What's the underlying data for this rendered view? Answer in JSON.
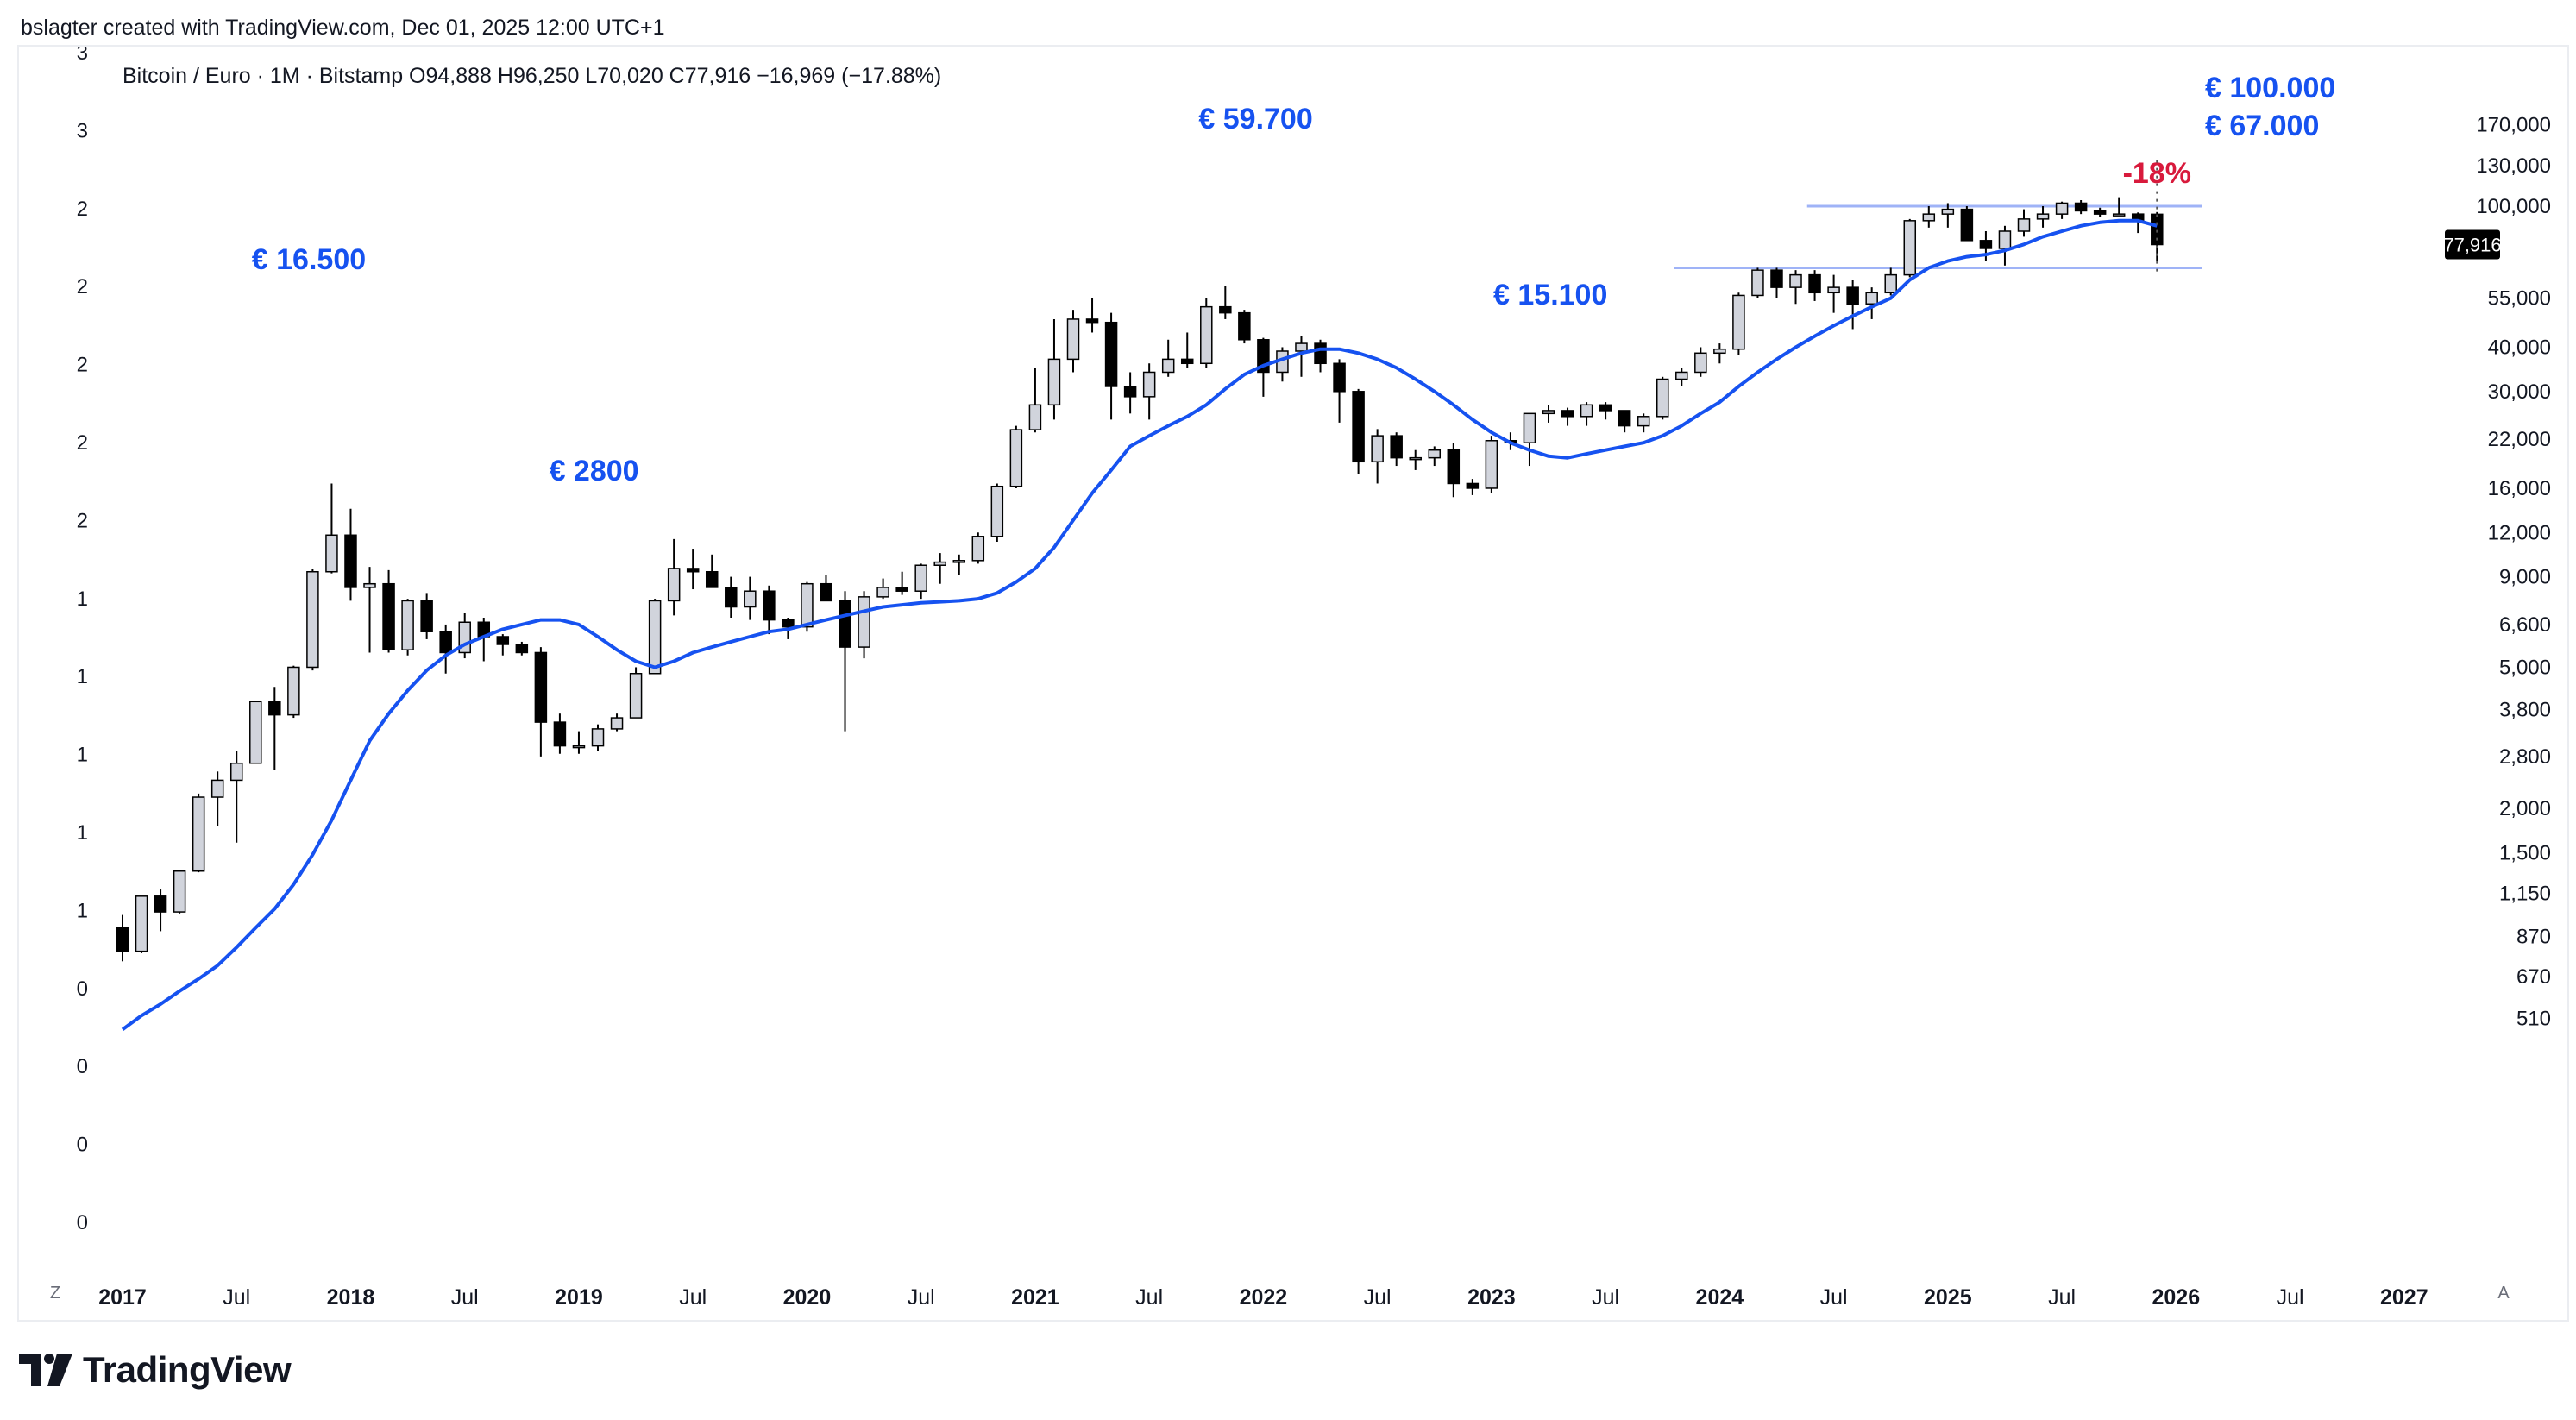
{
  "caption": "bslagter created with TradingView.com, Dec 01, 2025 12:00 UTC+1",
  "legend": "Bitcoin / Euro · 1M · Bitstamp  O94,888  H96,250  L70,020  C77,916  −16,969 (−17.88%)",
  "brand": "TradingView",
  "corner_left": "Z",
  "corner_right": "A",
  "last_price_label": "77,916",
  "colors": {
    "up_fill": "#d1d4dc",
    "down_fill": "#000000",
    "wick": "#000000",
    "ma_line": "#1652f0",
    "annotation_blue": "#1652f0",
    "annotation_red": "#d81a3c",
    "level_line": "#9fb3f7",
    "grid": "none"
  },
  "chart_data": {
    "type": "candlestick",
    "title": "Bitcoin / Euro · 1M · Bitstamp",
    "scale": "log",
    "ylim": [
      420,
      180000
    ],
    "y_ticks_right": [
      "170,000",
      "130,000",
      "100,000",
      "77,916",
      "55,000",
      "40,000",
      "30,000",
      "22,000",
      "16,000",
      "12,000",
      "9,000",
      "6,600",
      "5,000",
      "3,800",
      "2,800",
      "2,000",
      "1,500",
      "1,150",
      "870",
      "670",
      "510"
    ],
    "y_ticks_left": [
      "3",
      "3",
      "2",
      "2",
      "2",
      "2",
      "2",
      "1",
      "1",
      "1",
      "1",
      "1",
      "0",
      "0",
      "0",
      "0"
    ],
    "x_ticks": [
      {
        "label": "2017",
        "bold": true
      },
      {
        "label": "Jul",
        "bold": false
      },
      {
        "label": "2018",
        "bold": true
      },
      {
        "label": "Jul",
        "bold": false
      },
      {
        "label": "2019",
        "bold": true
      },
      {
        "label": "Jul",
        "bold": false
      },
      {
        "label": "2020",
        "bold": true
      },
      {
        "label": "Jul",
        "bold": false
      },
      {
        "label": "2021",
        "bold": true
      },
      {
        "label": "Jul",
        "bold": false
      },
      {
        "label": "2022",
        "bold": true
      },
      {
        "label": "Jul",
        "bold": false
      },
      {
        "label": "2023",
        "bold": true
      },
      {
        "label": "Jul",
        "bold": false
      },
      {
        "label": "2024",
        "bold": true
      },
      {
        "label": "Jul",
        "bold": false
      },
      {
        "label": "2025",
        "bold": true
      },
      {
        "label": "Jul",
        "bold": false
      },
      {
        "label": "2026",
        "bold": true
      },
      {
        "label": "Jul",
        "bold": false
      },
      {
        "label": "2027",
        "bold": true
      }
    ],
    "x_start": "2017-01",
    "candles": [
      [
        920,
        1000,
        740,
        790
      ],
      [
        790,
        1130,
        780,
        1130
      ],
      [
        1130,
        1180,
        900,
        1020
      ],
      [
        1020,
        1340,
        1010,
        1330
      ],
      [
        1330,
        2200,
        1320,
        2150
      ],
      [
        2150,
        2540,
        1780,
        2400
      ],
      [
        2400,
        2900,
        1600,
        2680
      ],
      [
        2680,
        4000,
        2680,
        4000
      ],
      [
        4000,
        4400,
        2560,
        3670
      ],
      [
        3670,
        5050,
        3600,
        5000
      ],
      [
        5000,
        9500,
        4900,
        9300
      ],
      [
        9300,
        16500,
        9200,
        11800
      ],
      [
        11800,
        14000,
        7700,
        8400
      ],
      [
        8400,
        9600,
        5500,
        8600
      ],
      [
        8600,
        9400,
        5500,
        5600
      ],
      [
        5600,
        7800,
        5400,
        7700
      ],
      [
        7700,
        8100,
        6000,
        6300
      ],
      [
        6300,
        6600,
        4800,
        5500
      ],
      [
        5500,
        7100,
        5300,
        6700
      ],
      [
        6700,
        6900,
        5200,
        6100
      ],
      [
        6100,
        6200,
        5400,
        5800
      ],
      [
        5800,
        5900,
        5400,
        5500
      ],
      [
        5500,
        5700,
        2800,
        3500
      ],
      [
        3500,
        3700,
        2850,
        3000
      ],
      [
        3000,
        3300,
        2850,
        3000
      ],
      [
        3000,
        3450,
        2900,
        3350
      ],
      [
        3350,
        3700,
        3300,
        3600
      ],
      [
        3600,
        5000,
        3600,
        4800
      ],
      [
        4800,
        7800,
        4800,
        7700
      ],
      [
        7700,
        11500,
        7000,
        9500
      ],
      [
        9500,
        10800,
        8300,
        9300
      ],
      [
        9300,
        10400,
        8600,
        8400
      ],
      [
        8400,
        9000,
        6900,
        7400
      ],
      [
        7400,
        9000,
        6800,
        8200
      ],
      [
        8200,
        8500,
        6200,
        6800
      ],
      [
        6800,
        6900,
        6000,
        6500
      ],
      [
        6500,
        8700,
        6300,
        8600
      ],
      [
        8600,
        9100,
        7700,
        7700
      ],
      [
        7700,
        8200,
        3300,
        5700
      ],
      [
        5700,
        8200,
        5300,
        7900
      ],
      [
        7900,
        8900,
        7800,
        8400
      ],
      [
        8400,
        9300,
        8000,
        8200
      ],
      [
        8200,
        9800,
        7800,
        9700
      ],
      [
        9700,
        10500,
        8600,
        9900
      ],
      [
        9900,
        10400,
        9100,
        10000
      ],
      [
        10000,
        12000,
        9800,
        11700
      ],
      [
        11700,
        16500,
        11300,
        16200
      ],
      [
        16200,
        24000,
        16000,
        23400
      ],
      [
        23400,
        35000,
        23000,
        27500
      ],
      [
        27500,
        48000,
        25000,
        37000
      ],
      [
        37000,
        51000,
        34000,
        48000
      ],
      [
        48000,
        55000,
        44000,
        47000
      ],
      [
        47000,
        50000,
        25000,
        31000
      ],
      [
        31000,
        34000,
        26000,
        29000
      ],
      [
        29000,
        36000,
        25000,
        34000
      ],
      [
        34000,
        42000,
        33000,
        37000
      ],
      [
        37000,
        44000,
        35000,
        36000
      ],
      [
        36000,
        55000,
        35000,
        52000
      ],
      [
        52000,
        59700,
        48000,
        50000
      ],
      [
        50000,
        51000,
        41000,
        42000
      ],
      [
        42000,
        42500,
        29000,
        34000
      ],
      [
        34000,
        40000,
        32000,
        39000
      ],
      [
        39000,
        43000,
        33000,
        41000
      ],
      [
        41000,
        42000,
        34000,
        36000
      ],
      [
        36000,
        37000,
        24500,
        30000
      ],
      [
        30000,
        30500,
        17500,
        19000
      ],
      [
        19000,
        23500,
        16500,
        22500
      ],
      [
        22500,
        23000,
        18500,
        19500
      ],
      [
        19500,
        20500,
        18000,
        19500
      ],
      [
        19500,
        21000,
        18500,
        20500
      ],
      [
        20500,
        21500,
        15100,
        16500
      ],
      [
        16500,
        17000,
        15300,
        16000
      ],
      [
        16000,
        22500,
        15500,
        21800
      ],
      [
        21800,
        23000,
        20500,
        21500
      ],
      [
        21500,
        26000,
        18500,
        26000
      ],
      [
        26000,
        27500,
        24500,
        26500
      ],
      [
        26500,
        27000,
        24000,
        25500
      ],
      [
        25500,
        28000,
        24000,
        27500
      ],
      [
        27500,
        28000,
        25000,
        26500
      ],
      [
        26500,
        26500,
        23000,
        24000
      ],
      [
        24000,
        26000,
        23000,
        25500
      ],
      [
        25500,
        33000,
        25000,
        32500
      ],
      [
        32500,
        35000,
        31000,
        34000
      ],
      [
        34000,
        40000,
        33000,
        38500
      ],
      [
        38500,
        41000,
        36000,
        39500
      ],
      [
        39500,
        57000,
        38000,
        56000
      ],
      [
        56000,
        67000,
        55000,
        66000
      ],
      [
        66000,
        67000,
        55000,
        59000
      ],
      [
        59000,
        66000,
        53000,
        64000
      ],
      [
        64000,
        66000,
        54000,
        57000
      ],
      [
        57000,
        64000,
        50000,
        59000
      ],
      [
        59000,
        62000,
        45000,
        53000
      ],
      [
        53000,
        59000,
        48000,
        57000
      ],
      [
        57000,
        67000,
        56000,
        64000
      ],
      [
        64000,
        92000,
        63000,
        91000
      ],
      [
        91000,
        100000,
        87000,
        95000
      ],
      [
        95000,
        102000,
        87000,
        98000
      ],
      [
        98000,
        100000,
        80000,
        80000
      ],
      [
        80000,
        85000,
        70000,
        76000
      ],
      [
        76000,
        88000,
        68000,
        85000
      ],
      [
        85000,
        98000,
        82000,
        92000
      ],
      [
        92000,
        100000,
        87000,
        95000
      ],
      [
        95000,
        103000,
        92000,
        102000
      ],
      [
        102000,
        104000,
        95000,
        97000
      ],
      [
        97000,
        99000,
        93000,
        95000
      ],
      [
        95000,
        106000,
        94000,
        95000
      ],
      [
        95000,
        96000,
        84000,
        91000
      ],
      [
        94888,
        96250,
        70020,
        77916
      ]
    ],
    "moving_average": [
      [
        0,
        475
      ],
      [
        1,
        520
      ],
      [
        2,
        560
      ],
      [
        3,
        610
      ],
      [
        4,
        660
      ],
      [
        5,
        720
      ],
      [
        6,
        810
      ],
      [
        7,
        920
      ],
      [
        8,
        1040
      ],
      [
        9,
        1220
      ],
      [
        10,
        1480
      ],
      [
        11,
        1850
      ],
      [
        12,
        2400
      ],
      [
        13,
        3100
      ],
      [
        14,
        3700
      ],
      [
        15,
        4300
      ],
      [
        16,
        4900
      ],
      [
        17,
        5400
      ],
      [
        18,
        5800
      ],
      [
        19,
        6100
      ],
      [
        20,
        6400
      ],
      [
        21,
        6600
      ],
      [
        22,
        6800
      ],
      [
        23,
        6800
      ],
      [
        24,
        6600
      ],
      [
        25,
        6100
      ],
      [
        26,
        5600
      ],
      [
        27,
        5200
      ],
      [
        28,
        5000
      ],
      [
        29,
        5200
      ],
      [
        30,
        5500
      ],
      [
        31,
        5700
      ],
      [
        32,
        5900
      ],
      [
        33,
        6100
      ],
      [
        34,
        6300
      ],
      [
        35,
        6400
      ],
      [
        36,
        6600
      ],
      [
        37,
        6800
      ],
      [
        38,
        7000
      ],
      [
        39,
        7200
      ],
      [
        40,
        7400
      ],
      [
        41,
        7500
      ],
      [
        42,
        7600
      ],
      [
        43,
        7650
      ],
      [
        44,
        7700
      ],
      [
        45,
        7800
      ],
      [
        46,
        8100
      ],
      [
        47,
        8700
      ],
      [
        48,
        9500
      ],
      [
        49,
        10900
      ],
      [
        50,
        13000
      ],
      [
        51,
        15500
      ],
      [
        52,
        18000
      ],
      [
        53,
        21000
      ],
      [
        54,
        22500
      ],
      [
        55,
        24000
      ],
      [
        56,
        25500
      ],
      [
        57,
        27500
      ],
      [
        58,
        30500
      ],
      [
        59,
        33500
      ],
      [
        60,
        35500
      ],
      [
        61,
        37000
      ],
      [
        62,
        38500
      ],
      [
        63,
        39500
      ],
      [
        64,
        39500
      ],
      [
        65,
        38500
      ],
      [
        66,
        37000
      ],
      [
        67,
        35000
      ],
      [
        68,
        32500
      ],
      [
        69,
        30000
      ],
      [
        70,
        27500
      ],
      [
        71,
        25000
      ],
      [
        72,
        23000
      ],
      [
        73,
        21500
      ],
      [
        74,
        20500
      ],
      [
        75,
        19700
      ],
      [
        76,
        19500
      ],
      [
        77,
        20000
      ],
      [
        78,
        20500
      ],
      [
        79,
        21000
      ],
      [
        80,
        21500
      ],
      [
        81,
        22500
      ],
      [
        82,
        24000
      ],
      [
        83,
        26000
      ],
      [
        84,
        28000
      ],
      [
        85,
        31000
      ],
      [
        86,
        34000
      ],
      [
        87,
        37000
      ],
      [
        88,
        40000
      ],
      [
        89,
        43000
      ],
      [
        90,
        46000
      ],
      [
        91,
        49000
      ],
      [
        92,
        52000
      ],
      [
        93,
        55000
      ],
      [
        94,
        62000
      ],
      [
        95,
        67000
      ],
      [
        96,
        70000
      ],
      [
        97,
        72000
      ],
      [
        98,
        73000
      ],
      [
        99,
        75000
      ],
      [
        100,
        78000
      ],
      [
        101,
        82000
      ],
      [
        102,
        85000
      ],
      [
        103,
        88000
      ],
      [
        104,
        90000
      ],
      [
        105,
        91000
      ],
      [
        106,
        91000
      ],
      [
        107,
        88000
      ]
    ],
    "annotations": [
      {
        "text": "€ 16.500",
        "color": "blue"
      },
      {
        "text": "€ 2800",
        "color": "blue"
      },
      {
        "text": "€ 59.700",
        "color": "blue"
      },
      {
        "text": "€ 15.100",
        "color": "blue"
      },
      {
        "text": "€ 100.000",
        "color": "blue"
      },
      {
        "text": "€ 67.000",
        "color": "blue"
      },
      {
        "text": "-18%",
        "color": "red"
      }
    ],
    "levels": [
      100000,
      67000
    ],
    "legend_position": "top-left"
  }
}
